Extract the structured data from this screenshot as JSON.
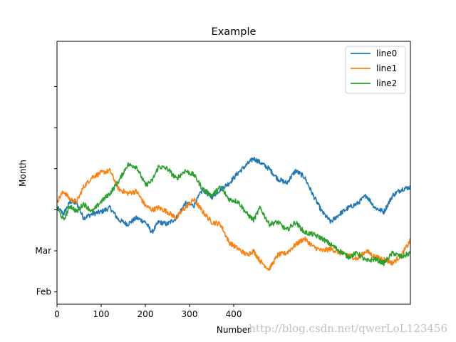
{
  "chart_data": {
    "type": "line",
    "title": "Example",
    "xlabel": "Number",
    "ylabel": "Month",
    "xlim": [
      0,
      800
    ],
    "ylim": [
      -2.3,
      4.1
    ],
    "xticks": [
      0,
      100,
      200,
      300,
      400
    ],
    "yticks": [
      -2,
      -1,
      0,
      1,
      2,
      3
    ],
    "ytick_labels": [
      "Feb",
      "Mar",
      "",
      "",
      "",
      ""
    ],
    "legend_position": "top-right",
    "grid": false,
    "series": [
      {
        "name": "line0",
        "color": "#1f77b4",
        "x": [
          0,
          15,
          30,
          45,
          60,
          80,
          100,
          120,
          140,
          160,
          180,
          200,
          215,
          230,
          250,
          270,
          290,
          310,
          330,
          350,
          370,
          390,
          410,
          430,
          445,
          460,
          480,
          500,
          520,
          540,
          560,
          580,
          600,
          620,
          640,
          660,
          680,
          700,
          720,
          740,
          760,
          780,
          800
        ],
        "y": [
          0.05,
          -0.1,
          0.2,
          0.15,
          -0.2,
          -0.1,
          -0.05,
          0.05,
          -0.25,
          -0.35,
          -0.2,
          -0.3,
          -0.55,
          -0.3,
          -0.35,
          -0.2,
          0.15,
          0.1,
          0.5,
          0.3,
          0.5,
          0.65,
          0.9,
          1.1,
          1.25,
          1.15,
          1.0,
          0.75,
          0.65,
          0.95,
          0.8,
          0.35,
          -0.05,
          -0.3,
          -0.1,
          0.05,
          0.15,
          0.35,
          0.05,
          -0.05,
          0.35,
          0.5,
          0.55
        ]
      },
      {
        "name": "line1",
        "color": "#ff7f0e",
        "x": [
          0,
          15,
          30,
          45,
          60,
          80,
          100,
          120,
          140,
          160,
          180,
          200,
          215,
          230,
          250,
          270,
          290,
          310,
          330,
          350,
          370,
          390,
          410,
          430,
          445,
          460,
          480,
          500,
          520,
          540,
          560,
          580,
          600,
          620,
          640,
          660,
          680,
          700,
          720,
          740,
          760,
          780,
          800
        ],
        "y": [
          0.2,
          0.45,
          0.25,
          0.2,
          0.55,
          0.8,
          0.9,
          0.95,
          0.5,
          0.4,
          0.45,
          0.1,
          0.0,
          0.05,
          -0.05,
          -0.2,
          0.05,
          0.25,
          -0.05,
          -0.3,
          -0.35,
          -0.8,
          -0.95,
          -1.1,
          -1.0,
          -1.25,
          -1.45,
          -1.1,
          -1.05,
          -0.85,
          -0.7,
          -0.9,
          -1.0,
          -0.95,
          -1.05,
          -1.1,
          -1.2,
          -1.0,
          -1.15,
          -1.2,
          -1.3,
          -1.1,
          -0.75
        ]
      },
      {
        "name": "line2",
        "color": "#2ca02c",
        "x": [
          0,
          15,
          30,
          45,
          60,
          80,
          100,
          120,
          140,
          160,
          180,
          200,
          215,
          230,
          250,
          270,
          290,
          310,
          330,
          350,
          370,
          390,
          410,
          430,
          445,
          460,
          480,
          500,
          520,
          540,
          560,
          580,
          600,
          620,
          640,
          660,
          680,
          700,
          720,
          740,
          760,
          780,
          800
        ],
        "y": [
          0.05,
          -0.25,
          0.1,
          -0.05,
          0.15,
          -0.05,
          0.2,
          0.4,
          0.7,
          1.1,
          1.05,
          0.6,
          0.7,
          1.05,
          1.0,
          0.75,
          0.95,
          0.85,
          0.5,
          0.35,
          0.55,
          0.25,
          0.2,
          -0.1,
          -0.25,
          0.05,
          -0.35,
          -0.3,
          -0.5,
          -0.3,
          -0.55,
          -0.6,
          -0.7,
          -0.85,
          -1.0,
          -1.15,
          -1.05,
          -1.25,
          -1.2,
          -1.3,
          -1.05,
          -1.15,
          -1.05
        ]
      }
    ]
  },
  "watermark": "http://blog.csdn.net/qwerLoL123456"
}
